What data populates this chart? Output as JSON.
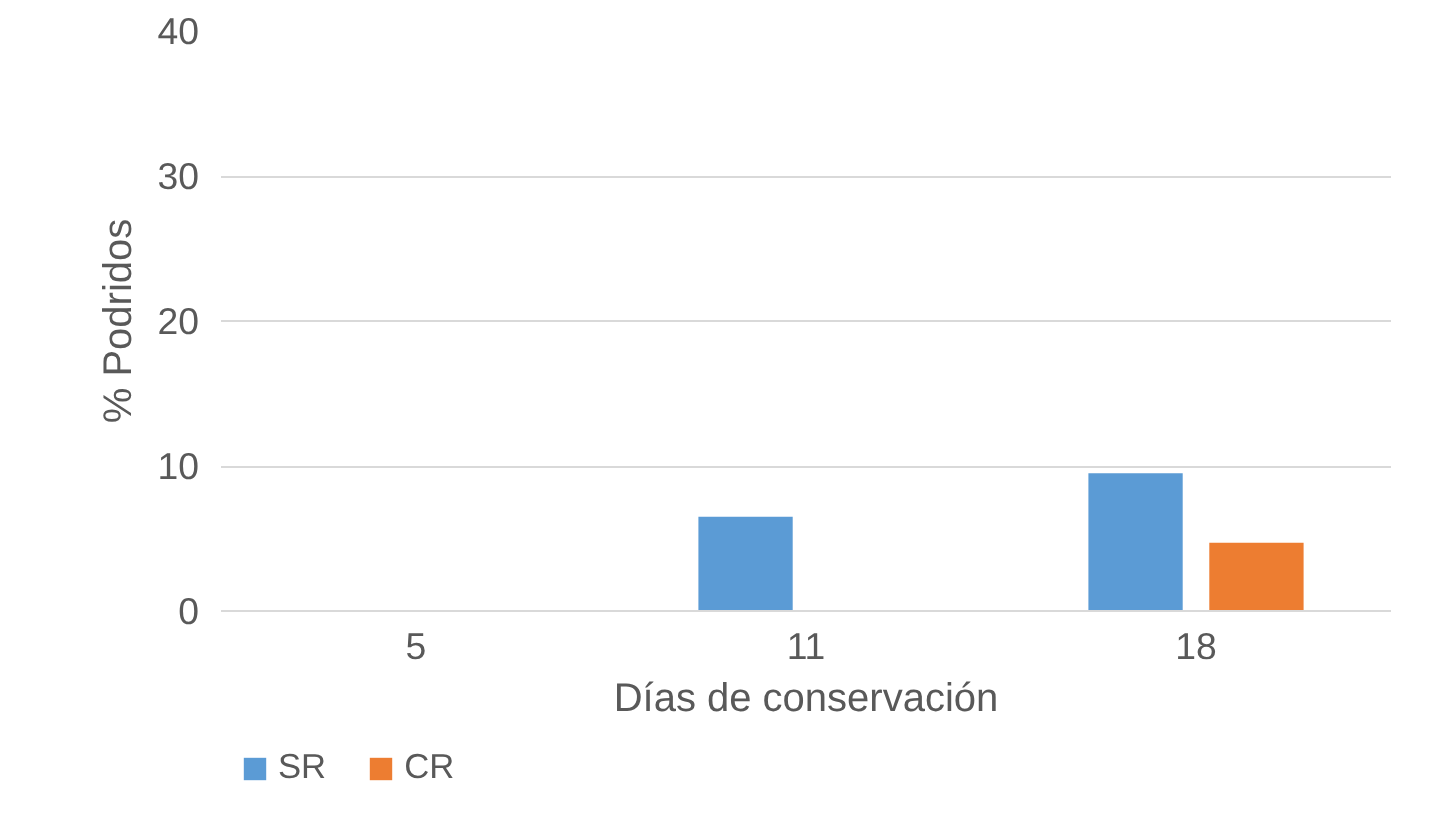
{
  "chart_data": {
    "type": "bar",
    "xlabel": "Días de conservación",
    "ylabel": "% Podridos",
    "categories": [
      "5",
      "11",
      "18"
    ],
    "series": [
      {
        "name": "SR",
        "color": "#5b9bd5",
        "values": [
          0,
          6.5,
          9.5
        ]
      },
      {
        "name": "CR",
        "color": "#ed7d31",
        "values": [
          0,
          0,
          4.7
        ]
      }
    ],
    "ylim": [
      0,
      40
    ],
    "yticks": [
      0,
      10,
      20,
      30,
      40
    ],
    "grid": "y",
    "legend": "bottom left"
  }
}
